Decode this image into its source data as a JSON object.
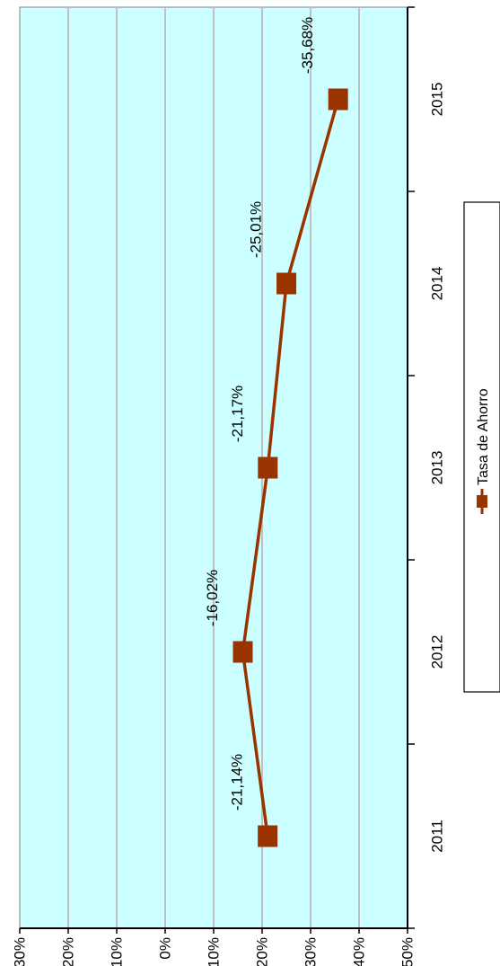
{
  "chart_data": {
    "type": "line",
    "orientation": "rotated-90-clockwise",
    "categories": [
      "2011",
      "2012",
      "2013",
      "2014",
      "2015"
    ],
    "series": [
      {
        "name": "Tasa de Ahorro",
        "values": [
          -21.14,
          -16.02,
          -21.17,
          -25.01,
          -35.68
        ],
        "labels": [
          "-21,14%",
          "-16,02%",
          "-21,17%",
          "-25,01%",
          "-35,68%"
        ],
        "color": "#993300"
      }
    ],
    "ylim": [
      -50,
      30
    ],
    "yticks": [
      30,
      20,
      10,
      0,
      -10,
      -20,
      -30,
      -40,
      -50
    ],
    "ytick_labels": [
      "30%",
      "20%",
      "10%",
      "0%",
      "-10%",
      "-20%",
      "-30%",
      "-40%",
      "-50%"
    ],
    "grid": true,
    "plot_background": "#ccffff",
    "gridline_color": "#c0c0c0",
    "legend": {
      "position": "right",
      "entries": [
        "Tasa de Ahorro"
      ]
    }
  }
}
